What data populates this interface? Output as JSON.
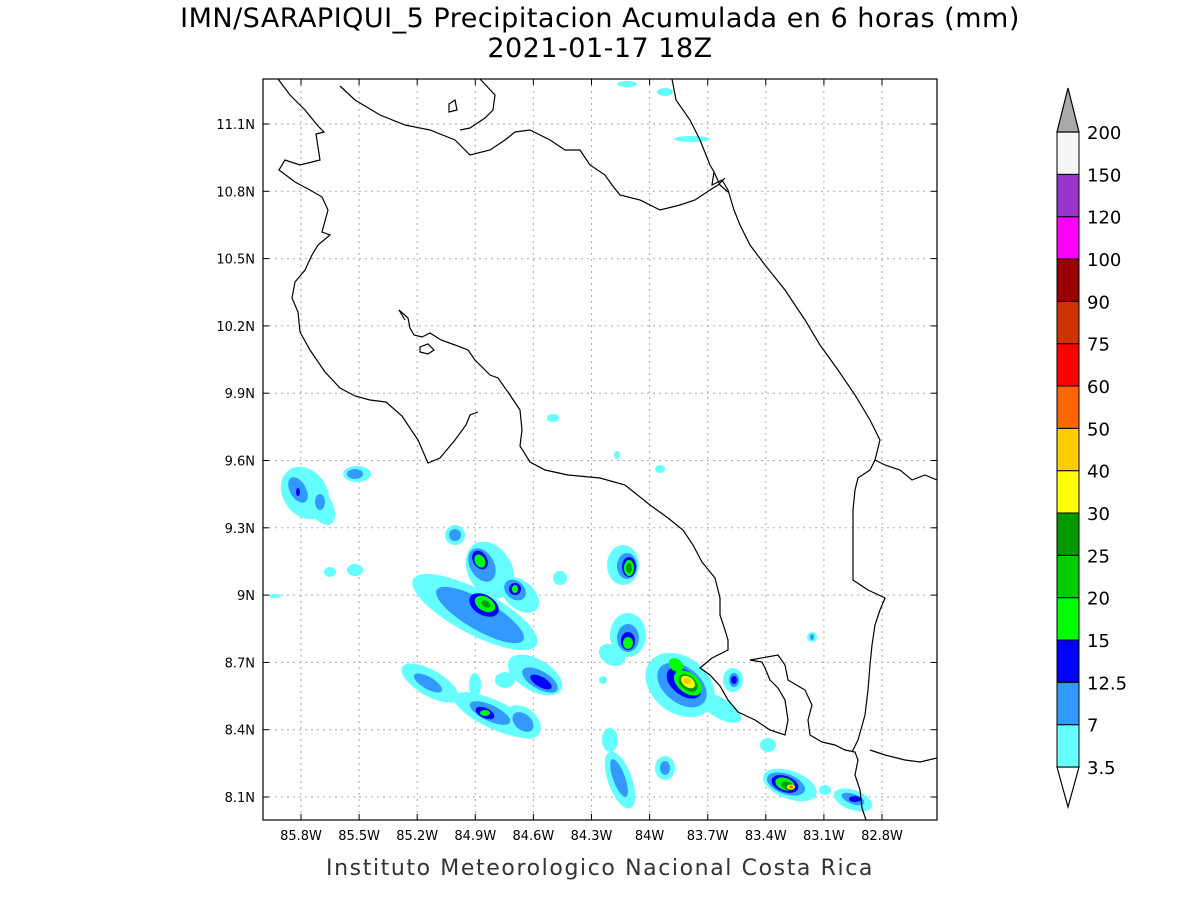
{
  "title_line1": "IMN/SARAPIQUI_5 Precipitacion Acumulada en 6 horas (mm)",
  "title_line2": "2021-01-17 18Z",
  "credit": "Instituto Meteorologico Nacional Costa Rica",
  "lat_ticks": [
    "11.1N",
    "10.8N",
    "10.5N",
    "10.2N",
    "9.9N",
    "9.6N",
    "9.3N",
    "9N",
    "8.7N",
    "8.4N",
    "8.1N"
  ],
  "lon_ticks": [
    "85.8W",
    "85.5W",
    "85.2W",
    "84.9W",
    "84.6W",
    "84.3W",
    "84W",
    "83.7W",
    "83.4W",
    "83.1W",
    "82.8W"
  ],
  "colorbar": {
    "levels": [
      {
        "label": "3.5",
        "color": "#66ffff"
      },
      {
        "label": "7",
        "color": "#3399ff"
      },
      {
        "label": "12.5",
        "color": "#0000ff"
      },
      {
        "label": "15",
        "color": "#00ff00"
      },
      {
        "label": "20",
        "color": "#00cc00"
      },
      {
        "label": "25",
        "color": "#009900"
      },
      {
        "label": "30",
        "color": "#ffff00"
      },
      {
        "label": "40",
        "color": "#ffcc00"
      },
      {
        "label": "50",
        "color": "#ff6600"
      },
      {
        "label": "60",
        "color": "#ff0000"
      },
      {
        "label": "75",
        "color": "#cc3300"
      },
      {
        "label": "90",
        "color": "#990000"
      },
      {
        "label": "100",
        "color": "#ff00ff"
      },
      {
        "label": "120",
        "color": "#9933cc"
      },
      {
        "label": "150",
        "color": "#f5f5f5"
      },
      {
        "label": "200",
        "color": "#aaaaaa"
      }
    ]
  }
}
